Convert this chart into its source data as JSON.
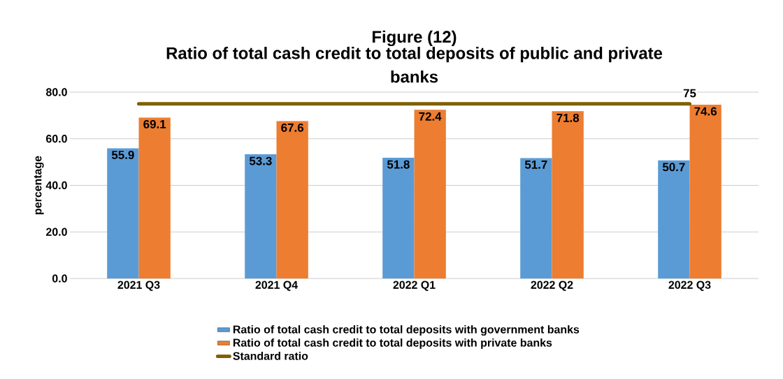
{
  "chart_data": {
    "type": "bar",
    "title": "Figure (12)",
    "subtitle": "Ratio of total cash credit to total deposits of public and private banks",
    "ylabel": "percentage",
    "categories": [
      "2021 Q3",
      "2021 Q4",
      "2022 Q1",
      "2022 Q2",
      "2022 Q3"
    ],
    "series": [
      {
        "name": "Ratio of total cash credit to total deposits with government banks",
        "color": "#5b9bd5",
        "values": [
          55.9,
          53.3,
          51.8,
          51.7,
          50.7
        ]
      },
      {
        "name": "Ratio of total cash credit to total deposits with private banks",
        "color": "#ed7d31",
        "values": [
          69.1,
          67.6,
          72.4,
          71.8,
          74.6
        ]
      },
      {
        "name": "Standard ratio",
        "type": "line",
        "color": "#7f6000",
        "values": [
          75,
          75,
          75,
          75,
          75
        ],
        "value_labels": [
          null,
          null,
          null,
          null,
          "75"
        ]
      }
    ],
    "ylim": [
      0,
      80
    ],
    "yticks": [
      {
        "value": 0,
        "label": "0.0"
      },
      {
        "value": 20,
        "label": "20.0"
      },
      {
        "value": 40,
        "label": "40.0"
      },
      {
        "value": 60,
        "label": "60.0"
      },
      {
        "value": 80,
        "label": "80.0"
      }
    ],
    "grid": "y",
    "legend": "bottom",
    "data_labels": true
  }
}
